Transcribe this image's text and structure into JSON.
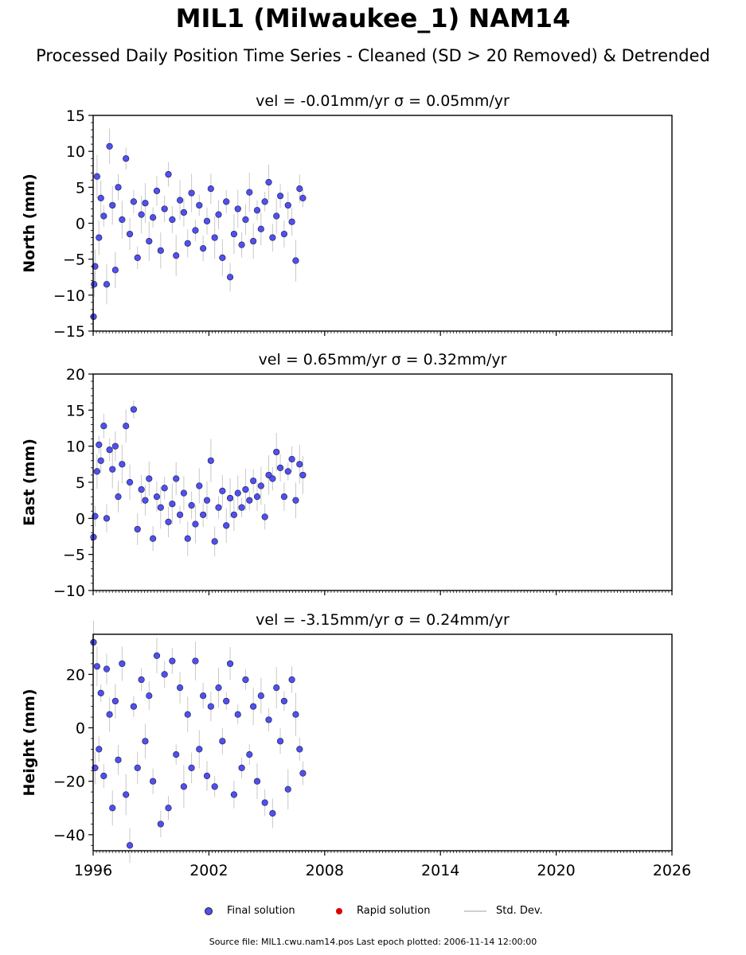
{
  "title": "MIL1 (Milwaukee_1) NAM14",
  "subtitle": "Processed Daily Position Time Series - Cleaned (SD > 20 Removed) & Detrended",
  "legend": {
    "final": "Final solution",
    "rapid": "Rapid solution",
    "std": "Std. Dev."
  },
  "source_note": "Source file: MIL1.cwu.nam14.pos  Last epoch plotted: 2006-11-14 12:00:00",
  "colors": {
    "final": "#5050f0",
    "rapid": "#dd0000",
    "std": "#c8c8c8"
  },
  "chart_data": [
    {
      "type": "scatter",
      "title": "vel = -0.01mm/yr   σ = 0.05mm/yr",
      "ylabel": "North (mm)",
      "xlim": [
        1996,
        2026
      ],
      "ylim": [
        -15,
        15
      ],
      "yticks": [
        -15,
        -10,
        -5,
        0,
        5,
        10,
        15
      ],
      "xticks": [
        1996,
        2002,
        2008,
        2014,
        2020,
        2026
      ],
      "series": [
        {
          "name": "Final solution",
          "x": [
            1996.02,
            1996.05,
            1996.1,
            1996.2,
            1996.3,
            1996.4,
            1996.55,
            1996.7,
            1996.85,
            1997.0,
            1997.15,
            1997.3,
            1997.5,
            1997.7,
            1997.9,
            1998.1,
            1998.3,
            1998.5,
            1998.7,
            1998.9,
            1999.1,
            1999.3,
            1999.5,
            1999.7,
            1999.9,
            2000.1,
            2000.3,
            2000.5,
            2000.7,
            2000.9,
            2001.1,
            2001.3,
            2001.5,
            2001.7,
            2001.9,
            2002.1,
            2002.3,
            2002.5,
            2002.7,
            2002.9,
            2003.1,
            2003.3,
            2003.5,
            2003.7,
            2003.9,
            2004.1,
            2004.3,
            2004.5,
            2004.7,
            2004.9,
            2005.1,
            2005.3,
            2005.5,
            2005.7,
            2005.9,
            2006.1,
            2006.3,
            2006.5,
            2006.7,
            2006.87
          ],
          "y": [
            -13.0,
            -8.5,
            -6.0,
            6.5,
            -2.0,
            3.5,
            1.0,
            -8.5,
            10.7,
            2.5,
            -6.5,
            5.0,
            0.5,
            9.0,
            -1.5,
            3.0,
            -4.8,
            1.2,
            2.8,
            -2.5,
            0.8,
            4.5,
            -3.8,
            2.0,
            6.8,
            0.5,
            -4.5,
            3.2,
            1.5,
            -2.8,
            4.2,
            -1.0,
            2.5,
            -3.5,
            0.3,
            4.8,
            -2.0,
            1.2,
            -4.8,
            3.0,
            -7.5,
            -1.5,
            2.0,
            -3.0,
            0.5,
            4.3,
            -2.5,
            1.8,
            -0.8,
            3.0,
            5.7,
            -2.0,
            1.0,
            3.8,
            -1.5,
            2.5,
            0.2,
            -5.2,
            4.8,
            3.5
          ]
        }
      ]
    },
    {
      "type": "scatter",
      "title": "vel = 0.65mm/yr   σ = 0.32mm/yr",
      "ylabel": "East (mm)",
      "xlim": [
        1996,
        2026
      ],
      "ylim": [
        -10,
        20
      ],
      "yticks": [
        -10,
        -5,
        0,
        5,
        10,
        15,
        20
      ],
      "xticks": [
        1996,
        2002,
        2008,
        2014,
        2020,
        2026
      ],
      "series": [
        {
          "name": "Final solution",
          "x": [
            1996.02,
            1996.1,
            1996.2,
            1996.3,
            1996.4,
            1996.55,
            1996.7,
            1996.85,
            1997.0,
            1997.15,
            1997.3,
            1997.5,
            1997.7,
            1997.9,
            1998.1,
            1998.3,
            1998.5,
            1998.7,
            1998.9,
            1999.1,
            1999.3,
            1999.5,
            1999.7,
            1999.9,
            2000.1,
            2000.3,
            2000.5,
            2000.7,
            2000.9,
            2001.1,
            2001.3,
            2001.5,
            2001.7,
            2001.9,
            2002.1,
            2002.3,
            2002.5,
            2002.7,
            2002.9,
            2003.1,
            2003.3,
            2003.5,
            2003.7,
            2003.9,
            2004.1,
            2004.3,
            2004.5,
            2004.7,
            2004.9,
            2005.1,
            2005.3,
            2005.5,
            2005.7,
            2005.9,
            2006.1,
            2006.3,
            2006.5,
            2006.7,
            2006.87
          ],
          "y": [
            -2.6,
            0.3,
            6.5,
            10.2,
            8.0,
            12.8,
            0.0,
            9.5,
            6.8,
            10.0,
            3.0,
            7.5,
            12.8,
            5.0,
            15.1,
            -1.5,
            4.0,
            2.5,
            5.5,
            -2.8,
            3.0,
            1.5,
            4.2,
            -0.5,
            2.0,
            5.5,
            0.5,
            3.5,
            -2.8,
            1.8,
            -0.8,
            4.5,
            0.5,
            2.5,
            8.0,
            -3.2,
            1.5,
            3.8,
            -1.0,
            2.8,
            0.5,
            3.5,
            1.5,
            4.0,
            2.5,
            5.2,
            3.0,
            4.5,
            0.2,
            6.0,
            5.5,
            9.2,
            7.0,
            3.0,
            6.5,
            8.2,
            2.5,
            7.5,
            6.0
          ]
        }
      ]
    },
    {
      "type": "scatter",
      "title": "vel = -3.15mm/yr   σ = 0.24mm/yr",
      "ylabel": "Height (mm)",
      "xlim": [
        1996,
        2026
      ],
      "ylim": [
        -46,
        35
      ],
      "yticks": [
        -40,
        -20,
        0,
        20
      ],
      "xticks": [
        1996,
        2002,
        2008,
        2014,
        2020,
        2026
      ],
      "series": [
        {
          "name": "Final solution",
          "x": [
            1996.02,
            1996.1,
            1996.2,
            1996.3,
            1996.4,
            1996.55,
            1996.7,
            1996.85,
            1997.0,
            1997.15,
            1997.3,
            1997.5,
            1997.7,
            1997.9,
            1998.1,
            1998.3,
            1998.5,
            1998.7,
            1998.9,
            1999.1,
            1999.3,
            1999.5,
            1999.7,
            1999.9,
            2000.1,
            2000.3,
            2000.5,
            2000.7,
            2000.9,
            2001.1,
            2001.3,
            2001.5,
            2001.7,
            2001.9,
            2002.1,
            2002.3,
            2002.5,
            2002.7,
            2002.9,
            2003.1,
            2003.3,
            2003.5,
            2003.7,
            2003.9,
            2004.1,
            2004.3,
            2004.5,
            2004.7,
            2004.9,
            2005.1,
            2005.3,
            2005.5,
            2005.7,
            2005.9,
            2006.1,
            2006.3,
            2006.5,
            2006.7,
            2006.87
          ],
          "y": [
            32.0,
            -15.0,
            23.0,
            -8.0,
            13.0,
            -18.0,
            22.0,
            5.0,
            -30.0,
            10.0,
            -12.0,
            24.0,
            -25.0,
            -44.0,
            8.0,
            -15.0,
            18.0,
            -5.0,
            12.0,
            -20.0,
            27.0,
            -36.0,
            20.0,
            -30.0,
            25.0,
            -10.0,
            15.0,
            -22.0,
            5.0,
            -15.0,
            25.0,
            -8.0,
            12.0,
            -18.0,
            8.0,
            -22.0,
            15.0,
            -5.0,
            10.0,
            24.0,
            -25.0,
            5.0,
            -15.0,
            18.0,
            -10.0,
            8.0,
            -20.0,
            12.0,
            -28.0,
            3.0,
            -32.0,
            15.0,
            -5.0,
            10.0,
            -23.0,
            18.0,
            5.0,
            -8.0,
            -17.0
          ]
        }
      ]
    }
  ]
}
